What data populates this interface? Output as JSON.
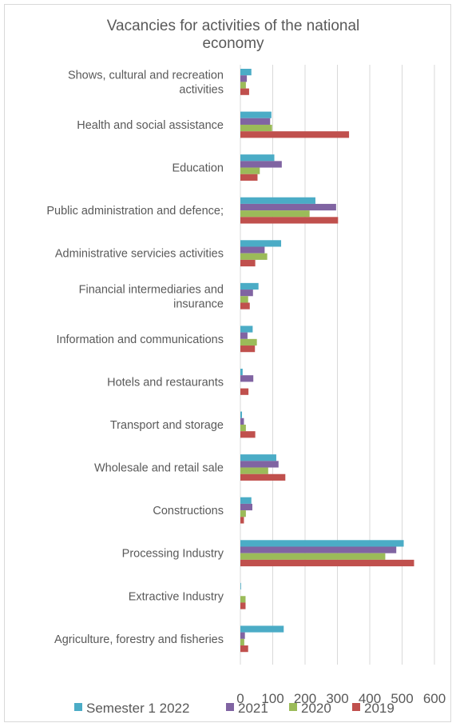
{
  "chart_data": {
    "type": "bar",
    "orientation": "horizontal",
    "title": "Vacancies for activities of the national economy",
    "categories": [
      "Shows, cultural and recreation activities",
      "Health and social assistance",
      "Education",
      "Public administration and defence;",
      "Administrative servicies activities",
      "Financial intermediaries and insurance",
      "Information and communications",
      "Hotels and restaurants",
      "Transport and storage",
      "Wholesale and retail sale",
      "Constructions",
      "Processing Industry",
      "Extractive Industry",
      "Agriculture, forestry and fisheries"
    ],
    "series": [
      {
        "name": "Semester 1 2022",
        "color": "#4bacc6",
        "values": [
          34,
          96,
          105,
          232,
          126,
          56,
          38,
          7,
          5,
          111,
          34,
          505,
          2,
          134
        ]
      },
      {
        "name": "2021",
        "color": "#8064a2",
        "values": [
          20,
          92,
          128,
          296,
          75,
          39,
          22,
          40,
          11,
          118,
          37,
          482,
          0,
          14
        ]
      },
      {
        "name": "2020",
        "color": "#9bbb59",
        "values": [
          17,
          98,
          60,
          214,
          83,
          24,
          51,
          0,
          17,
          86,
          17,
          448,
          16,
          12
        ]
      },
      {
        "name": "2019",
        "color": "#c0504d",
        "values": [
          27,
          336,
          53,
          302,
          46,
          29,
          45,
          25,
          46,
          139,
          11,
          537,
          16,
          24
        ]
      }
    ],
    "xlim": [
      0,
      600
    ],
    "xticks": [
      0,
      100,
      200,
      300,
      400,
      500,
      600
    ],
    "grid": true,
    "legend_position": "bottom"
  }
}
